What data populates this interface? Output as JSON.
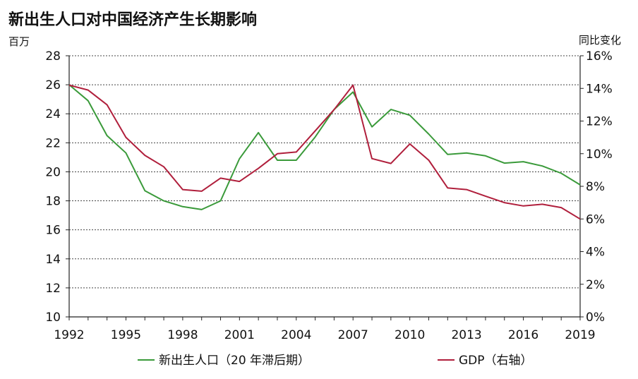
{
  "chart_data": {
    "type": "line",
    "title": "新出生人口对中国经济产生长期影响",
    "y_left_unit": "百万",
    "y_right_unit": "同比变化",
    "x_ticks": [
      "1992",
      "1995",
      "1998",
      "2001",
      "2004",
      "2007",
      "2010",
      "2013",
      "2016",
      "2019"
    ],
    "y_left_ticks": [
      "10",
      "12",
      "14",
      "16",
      "18",
      "20",
      "22",
      "24",
      "26",
      "28"
    ],
    "y_right_ticks": [
      "0%",
      "2%",
      "4%",
      "6%",
      "8%",
      "10%",
      "12%",
      "14%",
      "16%"
    ],
    "xlim": [
      1992,
      2019
    ],
    "ylim_left": [
      10,
      28
    ],
    "ylim_right": [
      0,
      16
    ],
    "grid": "horizontal dashed",
    "legend_position": "bottom",
    "x": [
      1992,
      1993,
      1994,
      1995,
      1996,
      1997,
      1998,
      1999,
      2000,
      2001,
      2002,
      2003,
      2004,
      2005,
      2006,
      2007,
      2008,
      2009,
      2010,
      2011,
      2012,
      2013,
      2014,
      2015,
      2016,
      2017,
      2018,
      2019
    ],
    "series": [
      {
        "name": "新出生人口（20 年滞后期）",
        "axis": "left",
        "color": "#3a9a3a",
        "values": [
          26.0,
          24.9,
          22.5,
          21.3,
          18.7,
          18.0,
          17.6,
          17.4,
          18.0,
          20.9,
          22.7,
          20.8,
          20.8,
          22.4,
          24.3,
          25.5,
          23.1,
          24.3,
          23.9,
          22.6,
          21.2,
          21.3,
          21.1,
          20.6,
          20.7,
          20.4,
          19.9,
          19.1
        ]
      },
      {
        "name": "GDP（右轴）",
        "axis": "right",
        "color": "#b01f3c",
        "values": [
          14.2,
          13.9,
          13.0,
          11.0,
          9.9,
          9.2,
          7.8,
          7.7,
          8.5,
          8.3,
          9.1,
          10.0,
          10.1,
          11.4,
          12.7,
          14.2,
          9.7,
          9.4,
          10.6,
          9.6,
          7.9,
          7.8,
          7.4,
          7.0,
          6.8,
          6.9,
          6.7,
          6.0
        ]
      }
    ]
  }
}
